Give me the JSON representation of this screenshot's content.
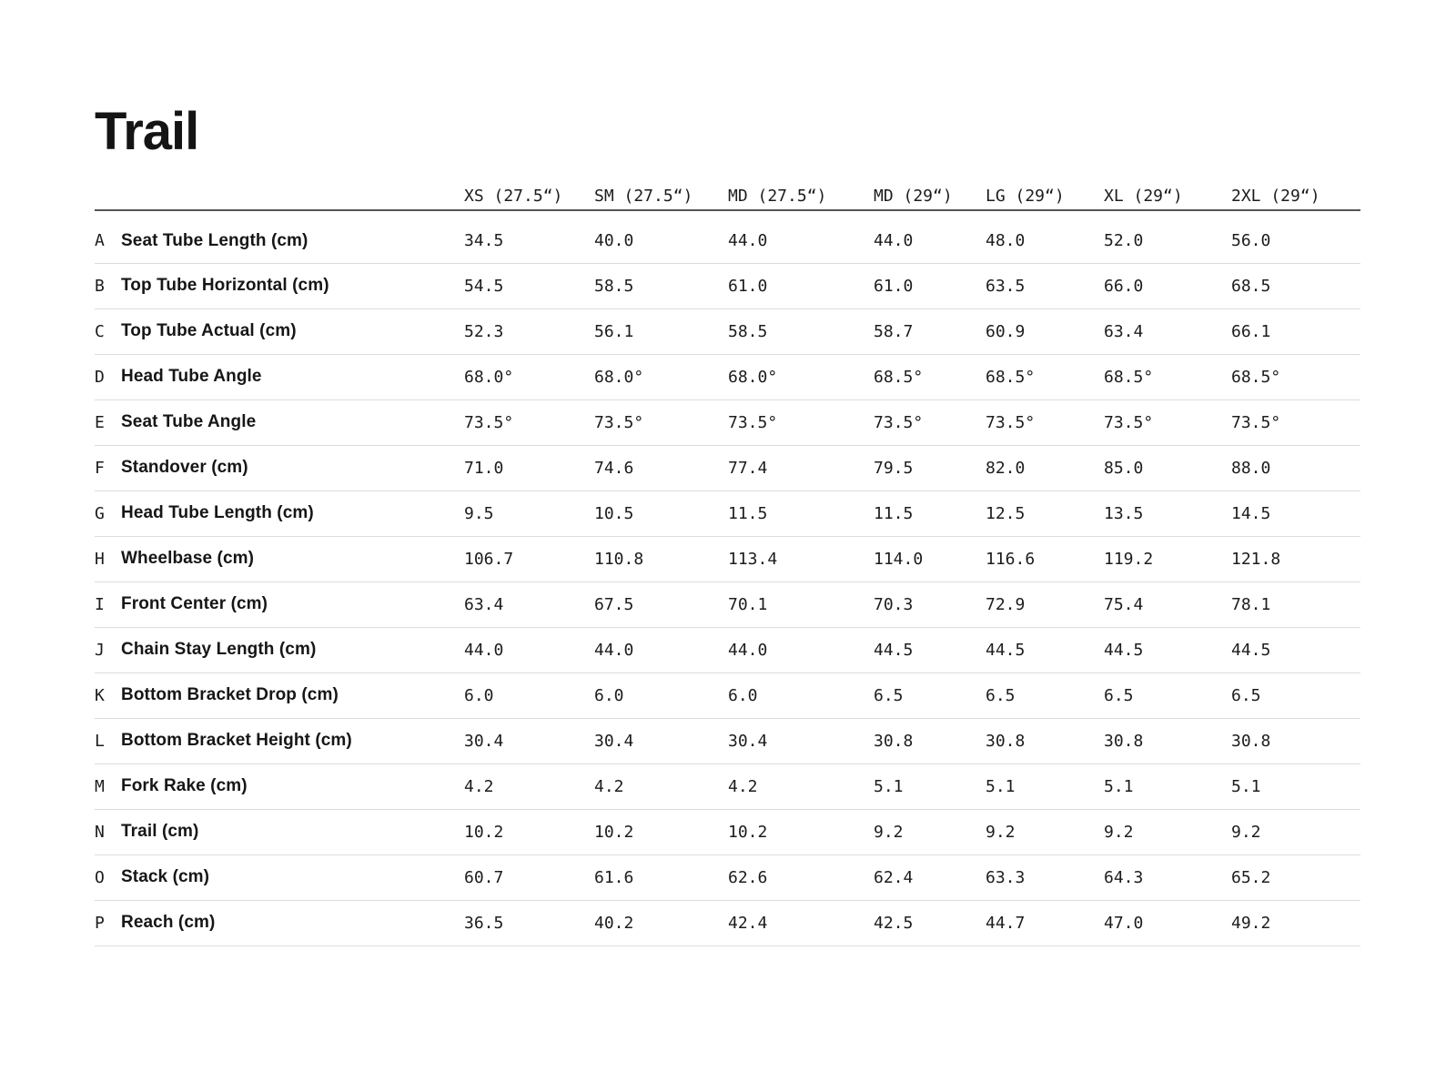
{
  "chart_data": {
    "type": "table",
    "title": "Trail",
    "column_headers": [
      "XS (27.5“)",
      "SM (27.5“)",
      "MD (27.5“)",
      "MD (29“)",
      "LG (29“)",
      "XL (29“)",
      "2XL (29“)"
    ],
    "rows": [
      {
        "letter": "A",
        "label": "Seat Tube Length (cm)",
        "values": [
          "34.5",
          "40.0",
          "44.0",
          "44.0",
          "48.0",
          "52.0",
          "56.0"
        ]
      },
      {
        "letter": "B",
        "label": "Top Tube Horizontal (cm)",
        "values": [
          "54.5",
          "58.5",
          "61.0",
          "61.0",
          "63.5",
          "66.0",
          "68.5"
        ]
      },
      {
        "letter": "C",
        "label": "Top Tube Actual (cm)",
        "values": [
          "52.3",
          "56.1",
          "58.5",
          "58.7",
          "60.9",
          "63.4",
          "66.1"
        ]
      },
      {
        "letter": "D",
        "label": "Head Tube Angle",
        "values": [
          "68.0°",
          "68.0°",
          "68.0°",
          "68.5°",
          "68.5°",
          "68.5°",
          "68.5°"
        ]
      },
      {
        "letter": "E",
        "label": "Seat Tube Angle",
        "values": [
          "73.5°",
          "73.5°",
          "73.5°",
          "73.5°",
          "73.5°",
          "73.5°",
          "73.5°"
        ]
      },
      {
        "letter": "F",
        "label": "Standover (cm)",
        "values": [
          "71.0",
          "74.6",
          "77.4",
          "79.5",
          "82.0",
          "85.0",
          "88.0"
        ]
      },
      {
        "letter": "G",
        "label": "Head Tube Length (cm)",
        "values": [
          "9.5",
          "10.5",
          "11.5",
          "11.5",
          "12.5",
          "13.5",
          "14.5"
        ]
      },
      {
        "letter": "H",
        "label": "Wheelbase (cm)",
        "values": [
          "106.7",
          "110.8",
          "113.4",
          "114.0",
          "116.6",
          "119.2",
          "121.8"
        ]
      },
      {
        "letter": "I",
        "label": "Front Center (cm)",
        "values": [
          "63.4",
          "67.5",
          "70.1",
          "70.3",
          "72.9",
          "75.4",
          "78.1"
        ]
      },
      {
        "letter": "J",
        "label": "Chain Stay Length (cm)",
        "values": [
          "44.0",
          "44.0",
          "44.0",
          "44.5",
          "44.5",
          "44.5",
          "44.5"
        ]
      },
      {
        "letter": "K",
        "label": "Bottom Bracket Drop (cm)",
        "values": [
          "6.0",
          "6.0",
          "6.0",
          "6.5",
          "6.5",
          "6.5",
          "6.5"
        ]
      },
      {
        "letter": "L",
        "label": "Bottom Bracket Height (cm)",
        "values": [
          "30.4",
          "30.4",
          "30.4",
          "30.8",
          "30.8",
          "30.8",
          "30.8"
        ]
      },
      {
        "letter": "M",
        "label": "Fork Rake (cm)",
        "values": [
          "4.2",
          "4.2",
          "4.2",
          "5.1",
          "5.1",
          "5.1",
          "5.1"
        ]
      },
      {
        "letter": "N",
        "label": "Trail (cm)",
        "values": [
          "10.2",
          "10.2",
          "10.2",
          "9.2",
          "9.2",
          "9.2",
          "9.2"
        ]
      },
      {
        "letter": "O",
        "label": "Stack (cm)",
        "values": [
          "60.7",
          "61.6",
          "62.6",
          "62.4",
          "63.3",
          "64.3",
          "65.2"
        ]
      },
      {
        "letter": "P",
        "label": "Reach (cm)",
        "values": [
          "36.5",
          "40.2",
          "42.4",
          "42.5",
          "44.7",
          "47.0",
          "49.2"
        ]
      }
    ]
  }
}
